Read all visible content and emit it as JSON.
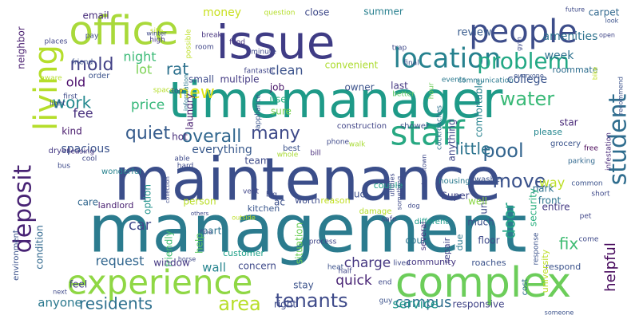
{
  "words": [
    {
      "text": "management",
      "color": "#2b7b8e"
    },
    {
      "text": "maintenance",
      "color": "#3b4e8a"
    },
    {
      "text": "timemanager",
      "color": "#1e9a88"
    },
    {
      "text": "issue",
      "color": "#3f3c85"
    },
    {
      "text": "complex",
      "color": "#6ccd5a"
    },
    {
      "text": "office",
      "color": "#a9d93a"
    },
    {
      "text": "experience",
      "color": "#8fd744"
    },
    {
      "text": "staff",
      "color": "#27a882"
    },
    {
      "text": "people",
      "color": "#3d4d8a"
    },
    {
      "text": "living",
      "color": "#b5de2b"
    },
    {
      "text": "deposit",
      "color": "#482374"
    },
    {
      "text": "student",
      "color": "#2f6d8e"
    },
    {
      "text": "location",
      "color": "#26818e"
    },
    {
      "text": "problem",
      "color": "#22a884"
    },
    {
      "text": "tenants",
      "color": "#3e4a89"
    },
    {
      "text": "water",
      "color": "#39b977"
    },
    {
      "text": "pool",
      "color": "#32648e"
    },
    {
      "text": "area",
      "color": "#b8de29"
    },
    {
      "text": "move",
      "color": "#3a528b"
    },
    {
      "text": "quiet",
      "color": "#365c8d"
    },
    {
      "text": "overall",
      "color": "#31678e"
    },
    {
      "text": "mold",
      "color": "#424186"
    },
    {
      "text": "many",
      "color": "#3e4a89"
    },
    {
      "text": "work",
      "color": "#23898e"
    },
    {
      "text": "new",
      "color": "#dde318"
    },
    {
      "text": "little",
      "color": "#2c738e"
    },
    {
      "text": "residents",
      "color": "#2d708e"
    },
    {
      "text": "rat",
      "color": "#2d718e"
    },
    {
      "text": "door",
      "color": "#20a486"
    },
    {
      "text": "fix",
      "color": "#3fbc73"
    },
    {
      "text": "helpful",
      "color": "#46085c"
    },
    {
      "text": "campus",
      "color": "#2e6e8e"
    },
    {
      "text": "quick",
      "color": "#482475"
    },
    {
      "text": "charge",
      "color": "#453781"
    },
    {
      "text": "service",
      "color": "#1f968b"
    },
    {
      "text": "price",
      "color": "#35b779"
    },
    {
      "text": "night",
      "color": "#3aba76"
    },
    {
      "text": "lot",
      "color": "#7ad151"
    },
    {
      "text": "fee",
      "color": "#472f7d"
    },
    {
      "text": "old",
      "color": "#4a0c6b"
    },
    {
      "text": "clean",
      "color": "#3b528b"
    },
    {
      "text": "way",
      "color": "#bddf26"
    },
    {
      "text": "car",
      "color": "#3f4788"
    },
    {
      "text": "wall",
      "color": "#25848e"
    },
    {
      "text": "request",
      "color": "#31668e"
    },
    {
      "text": "anyone",
      "color": "#2a788e"
    },
    {
      "text": "everything",
      "color": "#38598c"
    },
    {
      "text": "spacious",
      "color": "#3b528b"
    },
    {
      "text": "money",
      "color": "#c8e020"
    },
    {
      "text": "week",
      "color": "#2c718e"
    },
    {
      "text": "college",
      "color": "#3a548c"
    },
    {
      "text": "amenities",
      "color": "#2c728e"
    },
    {
      "text": "review",
      "color": "#375b8d"
    },
    {
      "text": "summer",
      "color": "#277f8e"
    },
    {
      "text": "close",
      "color": "#3e4989"
    },
    {
      "text": "email",
      "color": "#472d7b"
    },
    {
      "text": "neighbor",
      "color": "#481d6f"
    },
    {
      "text": "carpet",
      "color": "#31688e"
    },
    {
      "text": "small",
      "color": "#3e4c8a"
    },
    {
      "text": "multiple",
      "color": "#443a83"
    },
    {
      "text": "laundry",
      "color": "#481f70"
    },
    {
      "text": "job",
      "color": "#481769"
    },
    {
      "text": "use",
      "color": "#29af7f"
    },
    {
      "text": "convenient",
      "color": "#addc30"
    },
    {
      "text": "owner",
      "color": "#3b528b"
    },
    {
      "text": "last",
      "color": "#453882"
    },
    {
      "text": "roommate",
      "color": "#2e6e8e"
    },
    {
      "text": "comfortable",
      "color": "#26828e"
    },
    {
      "text": "anything",
      "color": "#404688"
    },
    {
      "text": "star",
      "color": "#482878"
    },
    {
      "text": "please",
      "color": "#24868e"
    },
    {
      "text": "hot",
      "color": "#472c7a"
    },
    {
      "text": "kind",
      "color": "#481a6c"
    },
    {
      "text": "team",
      "color": "#3e4a89"
    },
    {
      "text": "sure",
      "color": "#7ad151"
    },
    {
      "text": "front",
      "color": "#2b748e"
    },
    {
      "text": "park",
      "color": "#2d708e"
    },
    {
      "text": "option",
      "color": "#20928c"
    },
    {
      "text": "help",
      "color": "#5ec962"
    },
    {
      "text": "person",
      "color": "#bade28"
    },
    {
      "text": "entire",
      "color": "#443983"
    },
    {
      "text": "unit",
      "color": "#3e4a89"
    },
    {
      "text": "Super",
      "color": "#404588"
    },
    {
      "text": "well",
      "color": "#8bd646"
    },
    {
      "text": "much",
      "color": "#3b528b"
    },
    {
      "text": "security",
      "color": "#2ab07f"
    },
    {
      "text": "uc",
      "color": "#3c4f8a"
    },
    {
      "text": "care",
      "color": "#31678e"
    },
    {
      "text": "ac",
      "color": "#3c4f8a"
    },
    {
      "text": "landlord",
      "color": "#481f70"
    },
    {
      "text": "friendly",
      "color": "#42be71"
    },
    {
      "text": "part",
      "color": "#2c728e"
    },
    {
      "text": "court",
      "color": "#2b748e"
    },
    {
      "text": "floor",
      "color": "#3e4a89"
    },
    {
      "text": "repair",
      "color": "#414487"
    },
    {
      "text": "due",
      "color": "#2a788e"
    },
    {
      "text": "window",
      "color": "#453882"
    },
    {
      "text": "concern",
      "color": "#3e4989"
    },
    {
      "text": "community",
      "color": "#453781"
    },
    {
      "text": "roaches",
      "color": "#3b528b"
    },
    {
      "text": "stay",
      "color": "#3b528b"
    },
    {
      "text": "right",
      "color": "#3e4c8a"
    },
    {
      "text": "responsive",
      "color": "#414487"
    },
    {
      "text": "respond",
      "color": "#3b528b"
    },
    {
      "text": "feel",
      "color": "#433e85"
    },
    {
      "text": "university",
      "color": "#bddf26"
    },
    {
      "text": "condition",
      "color": "#31688e"
    },
    {
      "text": "environment",
      "color": "#3b528b"
    },
    {
      "text": "situation",
      "color": "#6ece58"
    },
    {
      "text": "customer",
      "color": "#1fa088"
    },
    {
      "text": "cost",
      "color": "#2f6c8e"
    },
    {
      "text": "kitchen",
      "color": "#39568c"
    },
    {
      "text": "worth",
      "color": "#3e4c8a"
    },
    {
      "text": "reason",
      "color": "#c2df23"
    },
    {
      "text": "couple",
      "color": "#1fa287"
    },
    {
      "text": "housing",
      "color": "#29798e"
    },
    {
      "text": "washer",
      "color": "#3b528b"
    },
    {
      "text": "different",
      "color": "#1e9b8a"
    },
    {
      "text": "damage",
      "color": "#b5de2b"
    },
    {
      "text": "several",
      "color": "#46337f"
    },
    {
      "text": "appliance",
      "color": "#3a548c"
    },
    {
      "text": "grocery",
      "color": "#3a548c"
    },
    {
      "text": "free",
      "color": "#440154"
    },
    {
      "text": "parking",
      "color": "#31688e"
    },
    {
      "text": "infestation",
      "color": "#482878"
    },
    {
      "text": "shower",
      "color": "#3b528b"
    },
    {
      "text": "construction",
      "color": "#414487"
    },
    {
      "text": "cockroaches",
      "color": "#2d708e"
    },
    {
      "text": "phone",
      "color": "#3e4989"
    },
    {
      "text": "walk",
      "color": "#a8db34"
    },
    {
      "text": "best",
      "color": "#3b528b"
    },
    {
      "text": "bill",
      "color": "#472c7a"
    },
    {
      "text": "whole",
      "color": "#a8db34"
    },
    {
      "text": "big",
      "color": "#3e4a89"
    },
    {
      "text": "vent",
      "color": "#404688"
    },
    {
      "text": "able",
      "color": "#3e4a89"
    },
    {
      "text": "hard",
      "color": "#3e4a89"
    },
    {
      "text": "wonderful",
      "color": "#26828e"
    },
    {
      "text": "cool",
      "color": "#3f4788"
    },
    {
      "text": "leasing",
      "color": "#46337f"
    },
    {
      "text": "bus",
      "color": "#3e4a89"
    },
    {
      "text": "dryer",
      "color": "#443983"
    },
    {
      "text": "light",
      "color": "#3e4a89"
    },
    {
      "text": "aware",
      "color": "#b5de2b"
    },
    {
      "text": "first",
      "color": "#3e4a89"
    },
    {
      "text": "order",
      "color": "#3b528b"
    },
    {
      "text": "friend",
      "color": "#3b528b"
    },
    {
      "text": "pay",
      "color": "#3e4989"
    },
    {
      "text": "places",
      "color": "#404588"
    },
    {
      "text": "site",
      "color": "#c2df23"
    },
    {
      "text": "possible",
      "color": "#bddf26"
    },
    {
      "text": "break",
      "color": "#46337f"
    },
    {
      "text": "food",
      "color": "#46337f"
    },
    {
      "text": "high",
      "color": "#453781"
    },
    {
      "text": "room",
      "color": "#404688"
    },
    {
      "text": "fantastic",
      "color": "#404588"
    },
    {
      "text": "minute",
      "color": "#3e4989"
    },
    {
      "text": "question",
      "color": "#b5de2b"
    },
    {
      "text": "trap",
      "color": "#3e4989"
    },
    {
      "text": "final",
      "color": "#3b528b"
    },
    {
      "text": "events",
      "color": "#2a788e"
    },
    {
      "text": "communication",
      "color": "#2a788e"
    },
    {
      "text": "everyone",
      "color": "#3b528b"
    },
    {
      "text": "gym",
      "color": "#3e4a89"
    },
    {
      "text": "future",
      "color": "#3e4a89"
    },
    {
      "text": "look",
      "color": "#3b528b"
    },
    {
      "text": "open",
      "color": "#404688"
    },
    {
      "text": "recommend",
      "color": "#3b528b"
    },
    {
      "text": "bike",
      "color": "#c2df23"
    },
    {
      "text": "better",
      "color": "#5ec962"
    },
    {
      "text": "hour",
      "color": "#6ece58"
    },
    {
      "text": "space",
      "color": "#b5de2b"
    },
    {
      "text": "top",
      "color": "#3e4989"
    },
    {
      "text": "winter",
      "color": "#3e4989"
    },
    {
      "text": "information",
      "color": "#2a788e"
    },
    {
      "text": "common",
      "color": "#3b528b"
    },
    {
      "text": "short",
      "color": "#3e4989"
    },
    {
      "text": "pet",
      "color": "#404688"
    },
    {
      "text": "come",
      "color": "#3e4989"
    },
    {
      "text": "response",
      "color": "#3b528b"
    },
    {
      "text": "process",
      "color": "#404588"
    },
    {
      "text": "safe",
      "color": "#404588"
    },
    {
      "text": "lived",
      "color": "#3e4989"
    },
    {
      "text": "half",
      "color": "#404588"
    },
    {
      "text": "end",
      "color": "#3e4989"
    },
    {
      "text": "guy",
      "color": "#3b528b"
    },
    {
      "text": "heat",
      "color": "#3b528b"
    },
    {
      "text": "someone",
      "color": "#3b528b"
    },
    {
      "text": "next",
      "color": "#3e4989"
    },
    {
      "text": "outside",
      "color": "#bddf26"
    },
    {
      "text": "horse",
      "color": "#3e4989"
    },
    {
      "text": "fine",
      "color": "#3e4989"
    },
    {
      "text": "others",
      "color": "#3e4989"
    },
    {
      "text": "collection",
      "color": "#3e4989"
    },
    {
      "text": "utilities",
      "color": "#3e4989"
    },
    {
      "text": "dog",
      "color": "#3e4989"
    },
    {
      "text": "downtown",
      "color": "#3e4989"
    },
    {
      "text": "something",
      "color": "#3e4989"
    }
  ]
}
